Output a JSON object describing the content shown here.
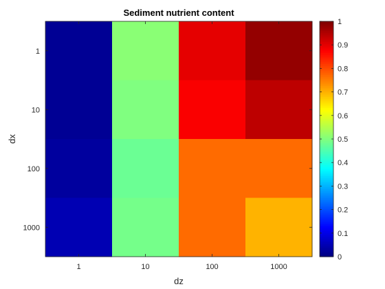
{
  "chart_data": {
    "type": "heatmap",
    "title": "Sediment nutrient content",
    "xlabel": "dz",
    "ylabel": "dx",
    "x_categories": [
      "1",
      "10",
      "100",
      "1000"
    ],
    "y_categories": [
      "1",
      "10",
      "100",
      "1000"
    ],
    "values": [
      [
        0.02,
        0.51,
        0.9,
        0.98
      ],
      [
        0.02,
        0.5,
        0.88,
        0.94
      ],
      [
        0.03,
        0.48,
        0.77,
        0.77
      ],
      [
        0.05,
        0.49,
        0.77,
        0.7
      ]
    ],
    "colorbar": {
      "colormap": "jet",
      "range": [
        0,
        1
      ],
      "ticks": [
        "0",
        "0.1",
        "0.2",
        "0.3",
        "0.4",
        "0.5",
        "0.6",
        "0.7",
        "0.8",
        "0.9",
        "1"
      ]
    }
  }
}
